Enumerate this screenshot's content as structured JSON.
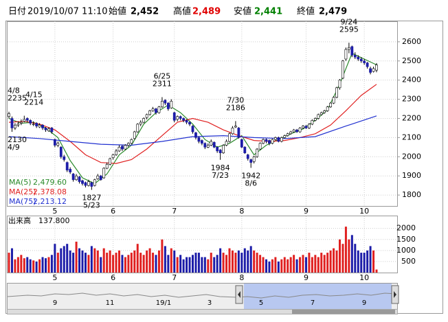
{
  "header": {
    "items": [
      {
        "label": "日付",
        "value": "2019/10/07 11:10",
        "color": "#000000"
      },
      {
        "label": "始値",
        "value": "2,452",
        "color": "#000000"
      },
      {
        "label": "高値",
        "value": "2,489",
        "color": "#e00000"
      },
      {
        "label": "安値",
        "value": "2,441",
        "color": "#008000"
      },
      {
        "label": "終値",
        "value": "2,479",
        "color": "#000000"
      }
    ]
  },
  "chart_data": {
    "type": "candlestick",
    "categories": [
      null,
      null,
      null,
      null,
      null,
      null,
      null,
      null,
      null,
      null,
      null,
      null,
      null,
      null,
      null,
      "5",
      null,
      null,
      null,
      null,
      null,
      null,
      null,
      null,
      null,
      null,
      null,
      null,
      null,
      null,
      null,
      null,
      null,
      null,
      "6",
      null,
      null,
      null,
      null,
      null,
      null,
      null,
      null,
      null,
      null,
      null,
      null,
      null,
      null,
      null,
      null,
      null,
      null,
      null,
      "7",
      null,
      null,
      null,
      null,
      null,
      null,
      null,
      null,
      null,
      null,
      null,
      null,
      null,
      null,
      null,
      null,
      null,
      null,
      null,
      null,
      null,
      "8",
      null,
      null,
      null,
      null,
      null,
      null,
      null,
      null,
      null,
      null,
      null,
      null,
      null,
      null,
      null,
      null,
      null,
      null,
      null,
      null,
      "9",
      null,
      null,
      null,
      null,
      null,
      null,
      null,
      null,
      null,
      null,
      null,
      null,
      null,
      null,
      null,
      null,
      null,
      null,
      "10",
      null,
      null,
      null,
      null
    ],
    "ohlc": [
      [
        2210,
        2235,
        2200,
        2225
      ],
      [
        2200,
        2210,
        2130,
        2150
      ],
      [
        2150,
        2175,
        2140,
        2165
      ],
      [
        2165,
        2185,
        2155,
        2170
      ],
      [
        2175,
        2195,
        2165,
        2180
      ],
      [
        2185,
        2214,
        2180,
        2195
      ],
      [
        2200,
        2205,
        2180,
        2190
      ],
      [
        2190,
        2195,
        2165,
        2175
      ],
      [
        2170,
        2185,
        2160,
        2170
      ],
      [
        2175,
        2180,
        2150,
        2160
      ],
      [
        2155,
        2175,
        2150,
        2165
      ],
      [
        2165,
        2170,
        2140,
        2150
      ],
      [
        2150,
        2155,
        2130,
        2140
      ],
      [
        2135,
        2155,
        2130,
        2145
      ],
      [
        2150,
        2155,
        2120,
        2130
      ],
      [
        2090,
        2095,
        2050,
        2060
      ],
      [
        2060,
        2080,
        2050,
        2070
      ],
      [
        2050,
        2055,
        1990,
        2000
      ],
      [
        2000,
        2010,
        1975,
        1985
      ],
      [
        1970,
        1975,
        1920,
        1930
      ],
      [
        1935,
        1945,
        1910,
        1920
      ],
      [
        1910,
        1915,
        1870,
        1880
      ],
      [
        1880,
        1910,
        1875,
        1900
      ],
      [
        1895,
        1900,
        1860,
        1870
      ],
      [
        1875,
        1880,
        1850,
        1860
      ],
      [
        1865,
        1870,
        1840,
        1850
      ],
      [
        1850,
        1880,
        1845,
        1870
      ],
      [
        1865,
        1870,
        1827,
        1845
      ],
      [
        1850,
        1885,
        1845,
        1880
      ],
      [
        1885,
        1910,
        1880,
        1900
      ],
      [
        1900,
        1905,
        1875,
        1880
      ],
      [
        1890,
        1945,
        1885,
        1940
      ],
      [
        1940,
        1970,
        1935,
        1960
      ],
      [
        1960,
        1995,
        1955,
        1990
      ],
      [
        1995,
        2015,
        1985,
        2010
      ],
      [
        2010,
        2040,
        2005,
        2030
      ],
      [
        2030,
        2060,
        2025,
        2050
      ],
      [
        2055,
        2060,
        2030,
        2040
      ],
      [
        2040,
        2065,
        2035,
        2060
      ],
      [
        2060,
        2075,
        2050,
        2070
      ],
      [
        2070,
        2095,
        2065,
        2090
      ],
      [
        2095,
        2135,
        2090,
        2130
      ],
      [
        2130,
        2175,
        2125,
        2170
      ],
      [
        2170,
        2190,
        2160,
        2180
      ],
      [
        2180,
        2205,
        2175,
        2200
      ],
      [
        2205,
        2225,
        2195,
        2220
      ],
      [
        2220,
        2245,
        2215,
        2240
      ],
      [
        2240,
        2260,
        2235,
        2250
      ],
      [
        2250,
        2255,
        2220,
        2230
      ],
      [
        2230,
        2265,
        2225,
        2260
      ],
      [
        2260,
        2311,
        2255,
        2290
      ],
      [
        2295,
        2300,
        2270,
        2280
      ],
      [
        2280,
        2285,
        2240,
        2250
      ],
      [
        2255,
        2300,
        2250,
        2290
      ],
      [
        2230,
        2235,
        2180,
        2190
      ],
      [
        2195,
        2215,
        2185,
        2210
      ],
      [
        2210,
        2215,
        2190,
        2200
      ],
      [
        2200,
        2205,
        2180,
        2190
      ],
      [
        2190,
        2195,
        2170,
        2180
      ],
      [
        2180,
        2185,
        2160,
        2170
      ],
      [
        2160,
        2165,
        2120,
        2130
      ],
      [
        2125,
        2130,
        2090,
        2100
      ],
      [
        2100,
        2105,
        2070,
        2080
      ],
      [
        2085,
        2090,
        2060,
        2070
      ],
      [
        2070,
        2075,
        2040,
        2050
      ],
      [
        2050,
        2070,
        2045,
        2060
      ],
      [
        2060,
        2090,
        2055,
        2080
      ],
      [
        2075,
        2080,
        2045,
        2050
      ],
      [
        2050,
        2055,
        2020,
        2030
      ],
      [
        2035,
        2040,
        1984,
        2020
      ],
      [
        2020,
        2065,
        2015,
        2060
      ],
      [
        2060,
        2090,
        2055,
        2080
      ],
      [
        2080,
        2125,
        2075,
        2120
      ],
      [
        2120,
        2160,
        2115,
        2150
      ],
      [
        2155,
        2186,
        2150,
        2160
      ],
      [
        2150,
        2155,
        2095,
        2100
      ],
      [
        2090,
        2095,
        2045,
        2050
      ],
      [
        2050,
        2055,
        2015,
        2020
      ],
      [
        2010,
        2015,
        1980,
        1990
      ],
      [
        1985,
        1990,
        1942,
        1970
      ],
      [
        1975,
        2005,
        1965,
        2000
      ],
      [
        2000,
        2045,
        1995,
        2040
      ],
      [
        2040,
        2075,
        2035,
        2070
      ],
      [
        2070,
        2095,
        2065,
        2090
      ],
      [
        2090,
        2095,
        2070,
        2080
      ],
      [
        2085,
        2090,
        2060,
        2070
      ],
      [
        2070,
        2095,
        2065,
        2090
      ],
      [
        2090,
        2105,
        2085,
        2100
      ],
      [
        2100,
        2105,
        2075,
        2080
      ],
      [
        2080,
        2105,
        2075,
        2100
      ],
      [
        2100,
        2115,
        2095,
        2110
      ],
      [
        2110,
        2125,
        2105,
        2120
      ],
      [
        2120,
        2135,
        2115,
        2130
      ],
      [
        2130,
        2145,
        2125,
        2140
      ],
      [
        2140,
        2145,
        2125,
        2130
      ],
      [
        2130,
        2155,
        2125,
        2150
      ],
      [
        2150,
        2165,
        2145,
        2160
      ],
      [
        2160,
        2165,
        2145,
        2150
      ],
      [
        2150,
        2175,
        2145,
        2170
      ],
      [
        2170,
        2195,
        2165,
        2190
      ],
      [
        2190,
        2205,
        2185,
        2200
      ],
      [
        2200,
        2225,
        2195,
        2220
      ],
      [
        2220,
        2235,
        2215,
        2230
      ],
      [
        2230,
        2245,
        2225,
        2240
      ],
      [
        2240,
        2265,
        2235,
        2260
      ],
      [
        2260,
        2285,
        2255,
        2280
      ],
      [
        2280,
        2315,
        2275,
        2310
      ],
      [
        2310,
        2365,
        2305,
        2360
      ],
      [
        2360,
        2405,
        2350,
        2400
      ],
      [
        2410,
        2505,
        2405,
        2500
      ],
      [
        2510,
        2570,
        2500,
        2560
      ],
      [
        2560,
        2595,
        2540,
        2570
      ],
      [
        2575,
        2580,
        2520,
        2530
      ],
      [
        2530,
        2545,
        2510,
        2520
      ],
      [
        2520,
        2530,
        2500,
        2510
      ],
      [
        2510,
        2520,
        2490,
        2500
      ],
      [
        2500,
        2510,
        2480,
        2490
      ],
      [
        2490,
        2495,
        2460,
        2470
      ],
      [
        2460,
        2470,
        2430,
        2440
      ],
      [
        2445,
        2470,
        2440,
        2460
      ],
      [
        2452,
        2489,
        2441,
        2479
      ]
    ],
    "up_color": "#ffffff",
    "down_color": "#1c1ca8",
    "edge_color": "#000000",
    "ylim": [
      1743,
      2707
    ],
    "yticks": [
      1800,
      1900,
      2000,
      2100,
      2200,
      2300,
      2400,
      2500,
      2600
    ],
    "grid": true,
    "ma": [
      {
        "name": "MA(5)",
        "color": "#2a8a2a",
        "value_label": "2,479.60",
        "x": [
          0,
          4,
          8,
          12,
          16,
          20,
          24,
          28,
          32,
          36,
          40,
          44,
          48,
          52,
          56,
          60,
          64,
          68,
          72,
          76,
          80,
          84,
          88,
          92,
          96,
          100,
          104,
          108,
          112,
          116,
          120
        ],
        "values": [
          2200,
          2175,
          2180,
          2150,
          2100,
          1980,
          1890,
          1860,
          1910,
          2010,
          2060,
          2170,
          2230,
          2270,
          2230,
          2170,
          2090,
          2050,
          2070,
          2110,
          2010,
          2060,
          2090,
          2120,
          2145,
          2190,
          2245,
          2380,
          2540,
          2510,
          2479.6
        ]
      },
      {
        "name": "MA(25)",
        "color": "#e02020",
        "value_label": "2,378.08",
        "x": [
          0,
          5,
          10,
          15,
          20,
          25,
          30,
          35,
          40,
          45,
          50,
          55,
          60,
          65,
          70,
          75,
          80,
          85,
          90,
          95,
          100,
          105,
          110,
          115,
          120
        ],
        "values": [
          2180,
          2185,
          2170,
          2140,
          2080,
          2010,
          1970,
          1965,
          1985,
          2040,
          2110,
          2180,
          2200,
          2180,
          2140,
          2110,
          2085,
          2080,
          2085,
          2100,
          2120,
          2165,
          2240,
          2320,
          2378.08
        ]
      },
      {
        "name": "MA(75)",
        "color": "#2030d0",
        "value_label": "2,213.12",
        "x": [
          0,
          10,
          20,
          30,
          40,
          50,
          60,
          70,
          80,
          90,
          100,
          110,
          120
        ],
        "values": [
          2105,
          2095,
          2080,
          2065,
          2060,
          2080,
          2105,
          2110,
          2100,
          2095,
          2105,
          2160,
          2213.12
        ]
      }
    ],
    "annotations": [
      {
        "date": "4/8",
        "value": 2235,
        "x": 0,
        "position": "above"
      },
      {
        "date": "4/15",
        "value": 2214,
        "x": 5,
        "position": "above"
      },
      {
        "date": "4/9",
        "value": 2130,
        "x": 1,
        "position": "below"
      },
      {
        "date": "5/23",
        "value": 1827,
        "x": 27,
        "position": "below"
      },
      {
        "date": "6/25",
        "value": 2311,
        "x": 50,
        "position": "above"
      },
      {
        "date": "7/23",
        "value": 1984,
        "x": 69,
        "position": "below"
      },
      {
        "date": "7/30",
        "value": 2186,
        "x": 74,
        "position": "above"
      },
      {
        "date": "8/6",
        "value": 1942,
        "x": 79,
        "position": "below"
      },
      {
        "date": "9/24",
        "value": 2595,
        "x": 111,
        "position": "above"
      }
    ],
    "volume": {
      "label": "出来高",
      "value_label": "137.800",
      "values": [
        900,
        1100,
        600,
        700,
        800,
        650,
        700,
        600,
        550,
        500,
        600,
        700,
        650,
        700,
        800,
        1300,
        900,
        1100,
        1200,
        1300,
        1000,
        900,
        1400,
        1100,
        1000,
        900,
        800,
        1200,
        1100,
        1000,
        700,
        1100,
        900,
        1000,
        800,
        900,
        1000,
        800,
        700,
        800,
        900,
        1000,
        1300,
        900,
        800,
        1000,
        1100,
        900,
        800,
        1000,
        1500,
        1200,
        800,
        1100,
        1000,
        700,
        800,
        600,
        700,
        700,
        800,
        900,
        900,
        700,
        700,
        600,
        900,
        700,
        800,
        1100,
        900,
        800,
        1100,
        1000,
        900,
        1000,
        900,
        1100,
        1000,
        1200,
        1000,
        900,
        800,
        700,
        600,
        500,
        600,
        700,
        500,
        600,
        700,
        600,
        700,
        800,
        600,
        700,
        800,
        700,
        900,
        700,
        800,
        700,
        900,
        800,
        900,
        1000,
        1100,
        1000,
        1500,
        1300,
        2080,
        1500,
        1700,
        1300,
        1000,
        900,
        900,
        1000,
        1200,
        1000,
        137.8
      ],
      "up_color": "#e02020",
      "down_color": "#1c1ca8",
      "ylim": [
        0,
        2550
      ],
      "yticks": [
        500,
        1000,
        1500,
        2000
      ]
    }
  },
  "navigator": {
    "labels": [
      "9",
      "11",
      "19/1",
      "3",
      "5",
      "7",
      "9"
    ]
  }
}
